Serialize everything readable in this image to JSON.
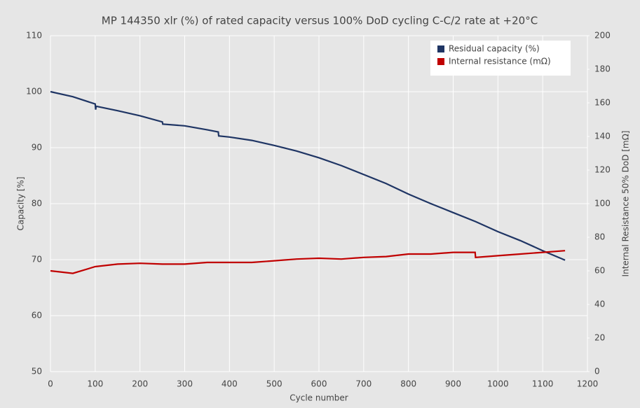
{
  "chart_data": {
    "type": "line",
    "title": "MP 144350 xlr (%) of rated capacity versus 100% DoD cycling C-C/2 rate at +20°C",
    "xlabel": "Cycle number",
    "ylabel": "Capacity [%]",
    "y2label": "Internal Resistance 50% DoD [mΩ]",
    "xlim": [
      0,
      1200
    ],
    "xticks": [
      0,
      100,
      200,
      300,
      400,
      500,
      600,
      700,
      800,
      900,
      1000,
      1100,
      1200
    ],
    "ylim": [
      50,
      110
    ],
    "yticks": [
      50,
      60,
      70,
      80,
      90,
      100,
      110
    ],
    "y2lim": [
      0,
      200
    ],
    "y2ticks": [
      0,
      20,
      40,
      60,
      80,
      100,
      120,
      140,
      160,
      180,
      200
    ],
    "grid": true,
    "legend": "upper right",
    "series": [
      {
        "name": "Residual capacity (%)",
        "color": "#1f3564",
        "x": [
          0,
          50,
          100,
          101,
          102,
          150,
          200,
          250,
          251,
          300,
          350,
          375,
          376,
          400,
          450,
          500,
          550,
          600,
          650,
          700,
          750,
          800,
          850,
          900,
          950,
          1000,
          1050,
          1100,
          1150
        ],
        "values": [
          100.0,
          99.1,
          97.8,
          96.8,
          97.4,
          96.6,
          95.7,
          94.6,
          94.2,
          93.9,
          93.2,
          92.8,
          92.1,
          91.9,
          91.3,
          90.4,
          89.4,
          88.2,
          86.8,
          85.2,
          83.6,
          81.7,
          80.0,
          78.4,
          76.8,
          75.0,
          73.4,
          71.6,
          69.9
        ]
      },
      {
        "name": "Internal resistance (mΩ)",
        "color": "#c00000",
        "axis": "y2",
        "x": [
          0,
          50,
          100,
          150,
          200,
          250,
          300,
          350,
          400,
          450,
          500,
          550,
          600,
          650,
          700,
          750,
          800,
          850,
          900,
          949,
          950,
          1000,
          1050,
          1100,
          1150
        ],
        "values": [
          60,
          58.5,
          62.5,
          64,
          64.5,
          64,
          64,
          65,
          65,
          65,
          66,
          67,
          67.5,
          67,
          68,
          68.5,
          70,
          70,
          71,
          71,
          68,
          69,
          70,
          71,
          72
        ]
      }
    ]
  }
}
